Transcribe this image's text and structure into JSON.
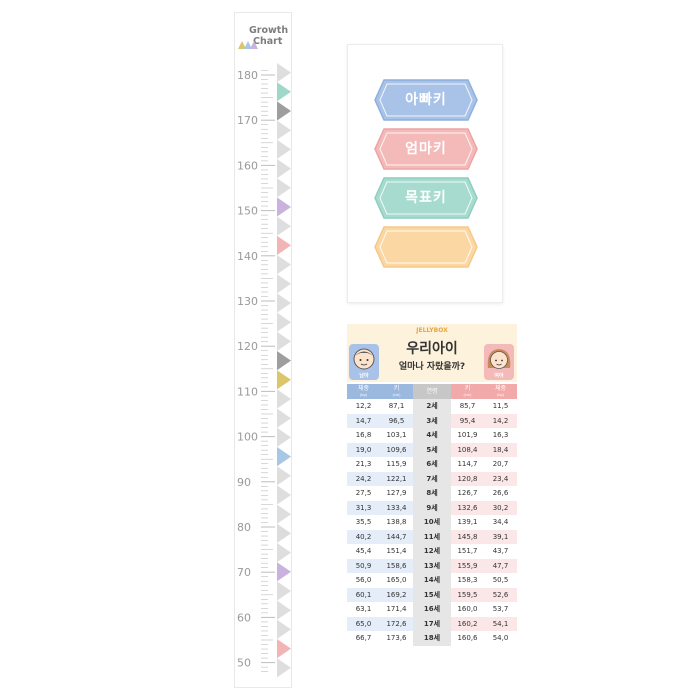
{
  "growth_chart": {
    "title_line1": "Growth",
    "title_line2": "Chart",
    "tick_labels": [
      "180",
      "170",
      "160",
      "150",
      "140",
      "130",
      "120",
      "110",
      "100",
      "90",
      "80",
      "70",
      "60",
      "50"
    ],
    "highlight_colors": {
      "teal": "#9fd7c9",
      "purple": "#c9b3de",
      "pink": "#f3b4b6",
      "mustard": "#dcc66a",
      "blue": "#a8c6e6",
      "gray": "#9e9e9e",
      "light": "#dcdcdc"
    }
  },
  "label_panel": {
    "labels": [
      {
        "text": "아빠키",
        "fill": "#a9c3e8",
        "stroke": "#8eb0de"
      },
      {
        "text": "엄마키",
        "fill": "#f4b9b9",
        "stroke": "#eea3a3"
      },
      {
        "text": "목표키",
        "fill": "#a7dbcf",
        "stroke": "#8ccfbf"
      },
      {
        "text": "",
        "fill": "#fbd7a4",
        "stroke": "#f5c88a"
      }
    ]
  },
  "growth_table": {
    "brand": "JELLYBOX",
    "title": "우리아이",
    "subtitle": "얼마나 자랐을까?",
    "boy_label": "남아",
    "girl_label": "여아",
    "headers": {
      "boy_weight": "체중",
      "boy_weight_unit": "(kg)",
      "boy_height": "키",
      "boy_height_unit": "(cm)",
      "age": "연령",
      "girl_height": "키",
      "girl_height_unit": "(cm)",
      "girl_weight": "체중",
      "girl_weight_unit": "(kg)"
    },
    "rows": [
      {
        "bw": "12,2",
        "bh": "87,1",
        "age": "2세",
        "gh": "85,7",
        "gw": "11,5"
      },
      {
        "bw": "14,7",
        "bh": "96,5",
        "age": "3세",
        "gh": "95,4",
        "gw": "14,2"
      },
      {
        "bw": "16,8",
        "bh": "103,1",
        "age": "4세",
        "gh": "101,9",
        "gw": "16,3"
      },
      {
        "bw": "19,0",
        "bh": "109,6",
        "age": "5세",
        "gh": "108,4",
        "gw": "18,4"
      },
      {
        "bw": "21,3",
        "bh": "115,9",
        "age": "6세",
        "gh": "114,7",
        "gw": "20,7"
      },
      {
        "bw": "24,2",
        "bh": "122,1",
        "age": "7세",
        "gh": "120,8",
        "gw": "23,4"
      },
      {
        "bw": "27,5",
        "bh": "127,9",
        "age": "8세",
        "gh": "126,7",
        "gw": "26,6"
      },
      {
        "bw": "31,3",
        "bh": "133,4",
        "age": "9세",
        "gh": "132,6",
        "gw": "30,2"
      },
      {
        "bw": "35,5",
        "bh": "138,8",
        "age": "10세",
        "gh": "139,1",
        "gw": "34,4"
      },
      {
        "bw": "40,2",
        "bh": "144,7",
        "age": "11세",
        "gh": "145,8",
        "gw": "39,1"
      },
      {
        "bw": "45,4",
        "bh": "151,4",
        "age": "12세",
        "gh": "151,7",
        "gw": "43,7"
      },
      {
        "bw": "50,9",
        "bh": "158,6",
        "age": "13세",
        "gh": "155,9",
        "gw": "47,7"
      },
      {
        "bw": "56,0",
        "bh": "165,0",
        "age": "14세",
        "gh": "158,3",
        "gw": "50,5"
      },
      {
        "bw": "60,1",
        "bh": "169,2",
        "age": "15세",
        "gh": "159,5",
        "gw": "52,6"
      },
      {
        "bw": "63,1",
        "bh": "171,4",
        "age": "16세",
        "gh": "160,0",
        "gw": "53,7"
      },
      {
        "bw": "65,0",
        "bh": "172,6",
        "age": "17세",
        "gh": "160,2",
        "gw": "54,1"
      },
      {
        "bw": "66,7",
        "bh": "173,6",
        "age": "18세",
        "gh": "160,6",
        "gw": "54,0"
      }
    ]
  }
}
